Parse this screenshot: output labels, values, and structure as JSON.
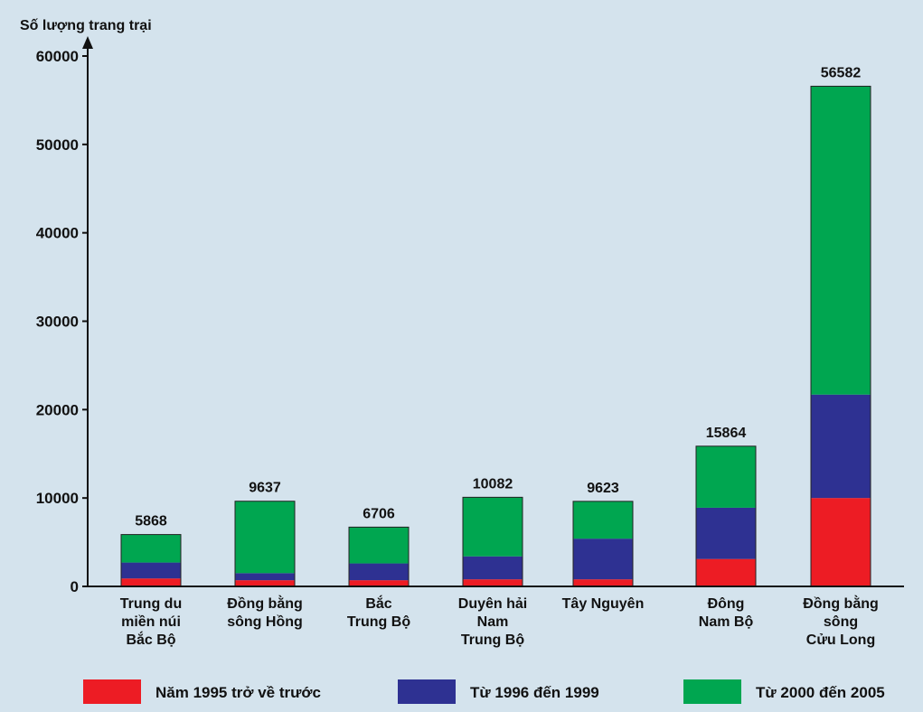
{
  "chart_data": {
    "type": "bar",
    "stacked": true,
    "ylabel": "Số lượng trang trại",
    "xlabel": "",
    "ylim": [
      0,
      60000
    ],
    "yticks": [
      0,
      10000,
      20000,
      30000,
      40000,
      50000,
      60000
    ],
    "ytick_labels": [
      "0",
      "10000",
      "20000",
      "30000",
      "40000",
      "50000",
      "60000"
    ],
    "categories": [
      [
        "Trung du",
        "miền núi",
        "Bắc Bộ"
      ],
      [
        "Đồng bằng",
        "sông Hồng"
      ],
      [
        "Bắc",
        "Trung Bộ"
      ],
      [
        "Duyên hải",
        "Nam",
        "Trung Bộ"
      ],
      [
        "Tây Nguyên"
      ],
      [
        "Đông",
        "Nam Bộ"
      ],
      [
        "Đồng bằng",
        "sông",
        "Cửu Long"
      ]
    ],
    "totals": [
      5868,
      9637,
      6706,
      10082,
      9623,
      15864,
      56582
    ],
    "series": [
      {
        "name": "Năm 1995 trở về trước",
        "color": "#ed1c24",
        "values": [
          900,
          700,
          700,
          800,
          800,
          3100,
          10000
        ]
      },
      {
        "name": "Từ 1996 đến 1999",
        "color": "#2e3192",
        "values": [
          1800,
          800,
          1900,
          2600,
          4600,
          5800,
          11700
        ]
      },
      {
        "name": "Từ 2000 đến 2005",
        "color": "#00a650",
        "values": [
          3168,
          8137,
          4106,
          6682,
          4223,
          6964,
          34882
        ]
      }
    ],
    "grid": false,
    "legend_position": "bottom"
  }
}
